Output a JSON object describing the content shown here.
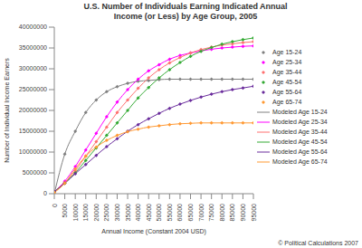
{
  "chart_data": {
    "type": "line",
    "title": "U.S. Number of Individuals Earning Indicated Annual Income (or Less) by Age Group, 2005",
    "x_label": "Annual Income (Constant 2004 USD)",
    "y_label": "Number of Individual Income Earners",
    "annotations": [
      "© Political Calculations 2007"
    ],
    "x": [
      0,
      5000,
      10000,
      15000,
      20000,
      25000,
      30000,
      35000,
      40000,
      45000,
      50000,
      55000,
      60000,
      65000,
      70000,
      75000,
      80000,
      85000,
      90000,
      95000
    ],
    "xlim": [
      0,
      95000
    ],
    "xticks": [
      0,
      5000,
      10000,
      15000,
      20000,
      25000,
      30000,
      35000,
      40000,
      45000,
      50000,
      55000,
      60000,
      65000,
      70000,
      75000,
      80000,
      85000,
      90000,
      95000
    ],
    "ylim": [
      0,
      40000000
    ],
    "yticks": [
      0,
      5000000,
      10000000,
      15000000,
      20000000,
      25000000,
      30000000,
      35000000,
      40000000
    ],
    "grid": false,
    "legend": "right",
    "series": [
      {
        "name": "Age 15-24",
        "color": "#808080",
        "marker": "diamond",
        "line_style": "none",
        "values": [
          0,
          9500000,
          15000000,
          19500000,
          22500000,
          24500000,
          25700000,
          26500000,
          27000000,
          27200000,
          27400000,
          27500000,
          27500000,
          27500000,
          27500000,
          27500000,
          27500000,
          27500000,
          27500000,
          27500000
        ]
      },
      {
        "name": "Age 25-34",
        "color": "#ff00ff",
        "marker": "diamond",
        "line_style": "none",
        "values": [
          500000,
          3000000,
          6500000,
          10500000,
          14500000,
          18500000,
          22000000,
          25000000,
          27500000,
          29500000,
          31000000,
          32300000,
          33200000,
          33800000,
          34300000,
          34700000,
          35000000,
          35200000,
          35400000,
          35500000
        ]
      },
      {
        "name": "Age 35-44",
        "color": "#ff7070",
        "marker": "diamond",
        "line_style": "none",
        "values": [
          500000,
          2700000,
          5500000,
          9000000,
          12500000,
          16000000,
          19500000,
          22500000,
          25300000,
          27800000,
          29800000,
          31400000,
          32700000,
          33800000,
          34600000,
          35200000,
          35700000,
          36000000,
          36300000,
          36500000
        ]
      },
      {
        "name": "Age 45-54",
        "color": "#33aa33",
        "marker": "diamond",
        "line_style": "none",
        "values": [
          500000,
          2500000,
          5000000,
          8000000,
          11000000,
          14000000,
          17000000,
          20000000,
          23000000,
          25500000,
          27800000,
          29800000,
          31500000,
          33000000,
          34200000,
          35100000,
          35900000,
          36500000,
          37000000,
          37400000
        ]
      },
      {
        "name": "Age 55-64",
        "color": "#6a2c9c",
        "marker": "diamond",
        "line_style": "none",
        "values": [
          500000,
          2500000,
          4800000,
          7000000,
          9200000,
          11300000,
          13200000,
          15000000,
          16600000,
          18000000,
          19300000,
          20500000,
          21500000,
          22400000,
          23200000,
          23900000,
          24500000,
          25000000,
          25400000,
          25800000
        ]
      },
      {
        "name": "Age 65-74",
        "color": "#ff9933",
        "marker": "diamond",
        "line_style": "none",
        "values": [
          300000,
          2500000,
          6000000,
          9000000,
          11200000,
          12800000,
          14000000,
          14900000,
          15500000,
          16000000,
          16300000,
          16600000,
          16800000,
          16900000,
          17000000,
          17000000,
          17000000,
          17000000,
          17000000,
          17000000
        ]
      },
      {
        "name": "Modeled Age 15-24",
        "color": "#808080",
        "marker": "none",
        "line_style": "solid",
        "values": [
          0,
          9500000,
          15000000,
          19500000,
          22500000,
          24500000,
          25700000,
          26500000,
          27000000,
          27200000,
          27400000,
          27500000,
          27500000,
          27500000,
          27500000,
          27500000,
          27500000,
          27500000,
          27500000,
          27500000
        ]
      },
      {
        "name": "Modeled Age 25-34",
        "color": "#ff00ff",
        "marker": "none",
        "line_style": "solid",
        "values": [
          500000,
          3000000,
          6500000,
          10500000,
          14500000,
          18500000,
          22000000,
          25000000,
          27500000,
          29500000,
          31000000,
          32300000,
          33200000,
          33800000,
          34300000,
          34700000,
          35000000,
          35200000,
          35400000,
          35500000
        ]
      },
      {
        "name": "Modeled Age 35-44",
        "color": "#ff7070",
        "marker": "none",
        "line_style": "solid",
        "values": [
          500000,
          2700000,
          5500000,
          9000000,
          12500000,
          16000000,
          19500000,
          22500000,
          25300000,
          27800000,
          29800000,
          31400000,
          32700000,
          33800000,
          34600000,
          35200000,
          35700000,
          36000000,
          36300000,
          36500000
        ]
      },
      {
        "name": "Modeled Age 45-54",
        "color": "#33aa33",
        "marker": "none",
        "line_style": "solid",
        "values": [
          500000,
          2500000,
          5000000,
          8000000,
          11000000,
          14000000,
          17000000,
          20000000,
          23000000,
          25500000,
          27800000,
          29800000,
          31500000,
          33000000,
          34200000,
          35100000,
          35900000,
          36500000,
          37000000,
          37400000
        ]
      },
      {
        "name": "Modeled Age 55-64",
        "color": "#6a2c9c",
        "marker": "none",
        "line_style": "solid",
        "values": [
          500000,
          2500000,
          4800000,
          7000000,
          9200000,
          11300000,
          13200000,
          15000000,
          16600000,
          18000000,
          19300000,
          20500000,
          21500000,
          22400000,
          23200000,
          23900000,
          24500000,
          25000000,
          25400000,
          25800000
        ]
      },
      {
        "name": "Modeled Age 65-74",
        "color": "#ff9933",
        "marker": "none",
        "line_style": "solid",
        "values": [
          300000,
          2500000,
          6000000,
          9000000,
          11200000,
          12800000,
          14000000,
          14900000,
          15500000,
          16000000,
          16300000,
          16600000,
          16800000,
          16900000,
          17000000,
          17000000,
          17000000,
          17000000,
          17000000,
          17000000
        ]
      }
    ]
  }
}
